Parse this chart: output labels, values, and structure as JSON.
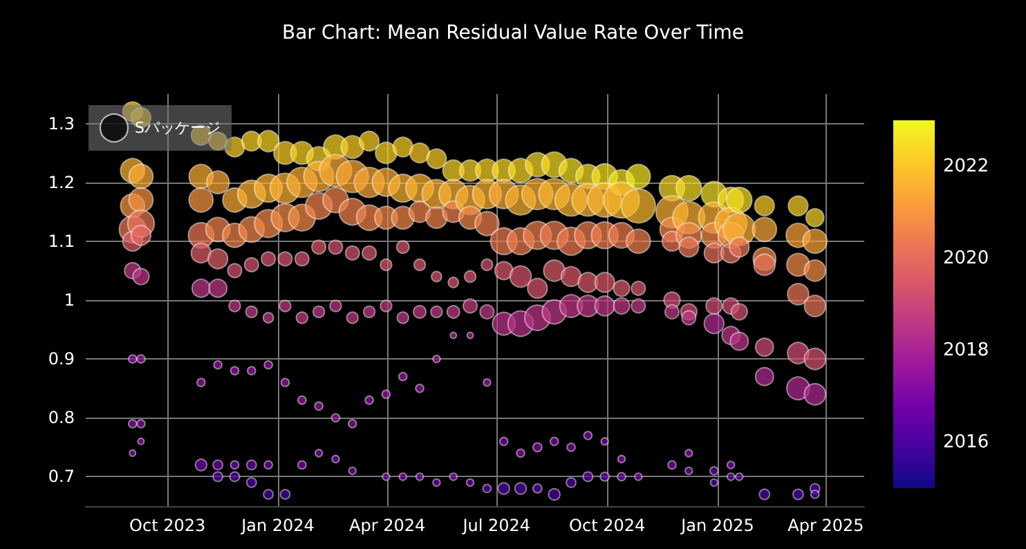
{
  "chart_data": {
    "type": "bubble",
    "title": "Bar Chart: Mean Residual Value Rate Over Time",
    "legend": "top left",
    "grid": true,
    "marker": "circle",
    "xlim": [
      "2023-07-25",
      "2025-05-03"
    ],
    "xticks": [
      {
        "value": "2023-10-01",
        "label": "Oct 2023"
      },
      {
        "value": "2024-01-01",
        "label": "Jan 2024"
      },
      {
        "value": "2024-04-01",
        "label": "Apr 2024"
      },
      {
        "value": "2024-07-01",
        "label": "Jul 2024"
      },
      {
        "value": "2024-10-01",
        "label": "Oct 2024"
      },
      {
        "value": "2025-01-01",
        "label": "Jan 2025"
      },
      {
        "value": "2025-04-01",
        "label": "Apr 2025"
      }
    ],
    "ylim": [
      0.65,
      1.35
    ],
    "yticks": [
      0.7,
      0.8,
      0.9,
      1,
      1.1,
      1.2,
      1.3
    ],
    "clim": [
      2015,
      2023
    ],
    "cticks": [
      2016,
      2018,
      2020,
      2022
    ],
    "series": [
      {
        "name": "Sパッケージ",
        "x": [
          "2023-09-02",
          "2023-09-02",
          "2023-09-02",
          "2023-09-02",
          "2023-09-02",
          "2023-09-02",
          "2023-09-02",
          "2023-09-02",
          "2023-09-02",
          "2023-09-09",
          "2023-09-09",
          "2023-09-09",
          "2023-09-09",
          "2023-09-09",
          "2023-09-09",
          "2023-09-09",
          "2023-09-09",
          "2023-09-09",
          "2023-10-29",
          "2023-10-29",
          "2023-10-29",
          "2023-10-29",
          "2023-10-29",
          "2023-10-29",
          "2023-10-29",
          "2023-10-29",
          "2023-11-12",
          "2023-11-12",
          "2023-11-12",
          "2023-11-12",
          "2023-11-12",
          "2023-11-12",
          "2023-11-12",
          "2023-11-12",
          "2023-11-26",
          "2023-11-26",
          "2023-11-26",
          "2023-11-26",
          "2023-11-26",
          "2023-11-26",
          "2023-11-26",
          "2023-11-26",
          "2023-12-10",
          "2023-12-10",
          "2023-12-10",
          "2023-12-10",
          "2023-12-10",
          "2023-12-10",
          "2023-12-10",
          "2023-12-10",
          "2023-12-24",
          "2023-12-24",
          "2023-12-24",
          "2023-12-24",
          "2023-12-24",
          "2023-12-24",
          "2023-12-24",
          "2023-12-24",
          "2024-01-07",
          "2024-01-07",
          "2024-01-07",
          "2024-01-07",
          "2024-01-07",
          "2024-01-07",
          "2024-01-07",
          "2024-01-21",
          "2024-01-21",
          "2024-01-21",
          "2024-01-21",
          "2024-01-21",
          "2024-01-21",
          "2024-01-21",
          "2024-02-04",
          "2024-02-04",
          "2024-02-04",
          "2024-02-04",
          "2024-02-04",
          "2024-02-04",
          "2024-02-04",
          "2024-02-18",
          "2024-02-18",
          "2024-02-18",
          "2024-02-18",
          "2024-02-18",
          "2024-02-18",
          "2024-02-18",
          "2024-03-03",
          "2024-03-03",
          "2024-03-03",
          "2024-03-03",
          "2024-03-03",
          "2024-03-03",
          "2024-03-03",
          "2024-03-17",
          "2024-03-17",
          "2024-03-17",
          "2024-03-17",
          "2024-03-17",
          "2024-03-17",
          "2024-03-31",
          "2024-03-31",
          "2024-03-31",
          "2024-03-31",
          "2024-03-31",
          "2024-03-31",
          "2024-03-31",
          "2024-04-14",
          "2024-04-14",
          "2024-04-14",
          "2024-04-14",
          "2024-04-14",
          "2024-04-14",
          "2024-04-14",
          "2024-04-28",
          "2024-04-28",
          "2024-04-28",
          "2024-04-28",
          "2024-04-28",
          "2024-04-28",
          "2024-04-28",
          "2024-05-12",
          "2024-05-12",
          "2024-05-12",
          "2024-05-12",
          "2024-05-12",
          "2024-05-12",
          "2024-05-12",
          "2024-05-26",
          "2024-05-26",
          "2024-05-26",
          "2024-05-26",
          "2024-05-26",
          "2024-05-26",
          "2024-05-26",
          "2024-06-09",
          "2024-06-09",
          "2024-06-09",
          "2024-06-09",
          "2024-06-09",
          "2024-06-09",
          "2024-06-09",
          "2024-06-23",
          "2024-06-23",
          "2024-06-23",
          "2024-06-23",
          "2024-06-23",
          "2024-06-23",
          "2024-06-23",
          "2024-07-07",
          "2024-07-07",
          "2024-07-07",
          "2024-07-07",
          "2024-07-07",
          "2024-07-07",
          "2024-07-07",
          "2024-07-21",
          "2024-07-21",
          "2024-07-21",
          "2024-07-21",
          "2024-07-21",
          "2024-07-21",
          "2024-07-21",
          "2024-08-04",
          "2024-08-04",
          "2024-08-04",
          "2024-08-04",
          "2024-08-04",
          "2024-08-04",
          "2024-08-04",
          "2024-08-18",
          "2024-08-18",
          "2024-08-18",
          "2024-08-18",
          "2024-08-18",
          "2024-08-18",
          "2024-08-18",
          "2024-09-01",
          "2024-09-01",
          "2024-09-01",
          "2024-09-01",
          "2024-09-01",
          "2024-09-01",
          "2024-09-01",
          "2024-09-15",
          "2024-09-15",
          "2024-09-15",
          "2024-09-15",
          "2024-09-15",
          "2024-09-15",
          "2024-09-15",
          "2024-09-29",
          "2024-09-29",
          "2024-09-29",
          "2024-09-29",
          "2024-09-29",
          "2024-09-29",
          "2024-09-29",
          "2024-10-13",
          "2024-10-13",
          "2024-10-13",
          "2024-10-13",
          "2024-10-13",
          "2024-10-13",
          "2024-10-13",
          "2024-10-27",
          "2024-10-27",
          "2024-10-27",
          "2024-10-27",
          "2024-10-27",
          "2024-10-27",
          "2024-11-24",
          "2024-11-24",
          "2024-11-24",
          "2024-11-24",
          "2024-11-24",
          "2024-11-24",
          "2024-11-24",
          "2024-12-08",
          "2024-12-08",
          "2024-12-08",
          "2024-12-08",
          "2024-12-08",
          "2024-12-08",
          "2024-12-08",
          "2024-12-08",
          "2024-12-29",
          "2024-12-29",
          "2024-12-29",
          "2024-12-29",
          "2024-12-29",
          "2024-12-29",
          "2024-12-29",
          "2024-12-29",
          "2025-01-12",
          "2025-01-12",
          "2025-01-12",
          "2025-01-12",
          "2025-01-12",
          "2025-01-12",
          "2025-01-12",
          "2025-01-12",
          "2025-01-19",
          "2025-01-19",
          "2025-01-19",
          "2025-01-19",
          "2025-01-19",
          "2025-01-19",
          "2025-02-09",
          "2025-02-09",
          "2025-02-09",
          "2025-02-09",
          "2025-02-09",
          "2025-02-09",
          "2025-02-09",
          "2025-03-09",
          "2025-03-09",
          "2025-03-09",
          "2025-03-09",
          "2025-03-09",
          "2025-03-09",
          "2025-03-09",
          "2025-03-23",
          "2025-03-23",
          "2025-03-23",
          "2025-03-23",
          "2025-03-23",
          "2025-03-23",
          "2025-03-23",
          "2025-03-23"
        ],
        "values": [
          1.32,
          1.22,
          1.16,
          1.12,
          1.1,
          1.05,
          0.9,
          0.79,
          0.74,
          1.31,
          1.21,
          1.17,
          1.13,
          1.11,
          1.04,
          0.9,
          0.79,
          0.76,
          1.28,
          1.21,
          1.17,
          1.11,
          1.08,
          1.02,
          0.86,
          0.72,
          1.27,
          1.2,
          1.12,
          1.07,
          1.02,
          0.89,
          0.72,
          0.7,
          1.26,
          1.17,
          1.11,
          1.05,
          0.99,
          0.88,
          0.72,
          0.7,
          1.27,
          1.18,
          1.12,
          1.06,
          0.98,
          0.88,
          0.72,
          0.69,
          1.27,
          1.19,
          1.13,
          1.07,
          0.97,
          0.89,
          0.72,
          0.67,
          1.25,
          1.19,
          1.14,
          1.07,
          0.99,
          0.86,
          0.67,
          1.25,
          1.2,
          1.14,
          1.07,
          0.97,
          0.83,
          0.72,
          1.24,
          1.21,
          1.16,
          1.09,
          0.98,
          0.82,
          0.74,
          1.26,
          1.22,
          1.17,
          1.09,
          0.99,
          0.8,
          0.73,
          1.26,
          1.21,
          1.15,
          1.08,
          0.97,
          0.79,
          0.71,
          1.27,
          1.2,
          1.14,
          1.08,
          0.98,
          0.83,
          1.25,
          1.2,
          1.14,
          1.06,
          0.99,
          0.84,
          0.7,
          1.26,
          1.19,
          1.14,
          1.09,
          0.97,
          0.87,
          0.7,
          1.25,
          1.19,
          1.15,
          1.06,
          0.98,
          0.85,
          0.7,
          1.24,
          1.18,
          1.14,
          1.04,
          0.98,
          0.9,
          0.69,
          1.22,
          1.18,
          1.15,
          1.03,
          0.98,
          0.94,
          0.7,
          1.22,
          1.17,
          1.14,
          1.04,
          0.99,
          0.94,
          0.69,
          1.22,
          1.18,
          1.13,
          1.06,
          0.98,
          0.86,
          0.68,
          1.22,
          1.18,
          1.1,
          1.05,
          0.96,
          0.76,
          0.68,
          1.22,
          1.17,
          1.1,
          1.04,
          0.96,
          0.74,
          0.68,
          1.23,
          1.18,
          1.11,
          1.02,
          0.97,
          0.75,
          0.68,
          1.23,
          1.18,
          1.11,
          1.05,
          0.98,
          0.76,
          0.67,
          1.22,
          1.17,
          1.1,
          1.04,
          0.99,
          0.75,
          0.69,
          1.21,
          1.17,
          1.11,
          1.03,
          0.99,
          0.77,
          0.7,
          1.21,
          1.17,
          1.11,
          1.03,
          0.99,
          0.76,
          0.7,
          1.2,
          1.17,
          1.11,
          1.02,
          0.99,
          0.73,
          0.7,
          1.21,
          1.16,
          1.1,
          1.02,
          0.99,
          0.7,
          1.19,
          1.15,
          1.12,
          1.1,
          1.0,
          0.98,
          0.72,
          1.19,
          1.14,
          1.11,
          1.09,
          0.98,
          0.97,
          0.74,
          0.71,
          1.18,
          1.14,
          1.11,
          1.08,
          0.99,
          0.96,
          0.71,
          0.69,
          1.17,
          1.13,
          1.11,
          1.08,
          0.99,
          0.94,
          0.72,
          0.7,
          1.17,
          1.12,
          1.09,
          0.98,
          0.93,
          0.7,
          1.16,
          1.12,
          1.07,
          1.06,
          0.92,
          0.87,
          0.67,
          1.16,
          1.11,
          1.06,
          1.01,
          0.91,
          0.85,
          0.67,
          1.14,
          1.1,
          1.05,
          0.99,
          0.9,
          0.84,
          0.68,
          0.67
        ],
        "sizes": [
          0.3,
          0.45,
          0.45,
          0.55,
          0.3,
          0.2,
          0.05,
          0.05,
          0.03,
          0.3,
          0.45,
          0.45,
          0.55,
          0.3,
          0.2,
          0.05,
          0.05,
          0.03,
          0.3,
          0.45,
          0.45,
          0.5,
          0.3,
          0.25,
          0.05,
          0.1,
          0.25,
          0.4,
          0.45,
          0.3,
          0.25,
          0.05,
          0.07,
          0.07,
          0.3,
          0.45,
          0.45,
          0.15,
          0.1,
          0.05,
          0.05,
          0.07,
          0.3,
          0.6,
          0.5,
          0.15,
          0.1,
          0.05,
          0.07,
          0.07,
          0.35,
          0.6,
          0.6,
          0.15,
          0.08,
          0.05,
          0.05,
          0.07,
          0.4,
          0.7,
          0.6,
          0.15,
          0.1,
          0.05,
          0.07,
          0.4,
          0.7,
          0.55,
          0.15,
          0.1,
          0.05,
          0.05,
          0.45,
          0.7,
          0.55,
          0.15,
          0.1,
          0.05,
          0.04,
          0.45,
          0.8,
          0.5,
          0.15,
          0.1,
          0.05,
          0.04,
          0.4,
          0.8,
          0.55,
          0.15,
          0.1,
          0.05,
          0.04,
          0.3,
          0.7,
          0.5,
          0.15,
          0.1,
          0.05,
          0.35,
          0.6,
          0.4,
          0.1,
          0.1,
          0.05,
          0.04,
          0.3,
          0.6,
          0.4,
          0.12,
          0.1,
          0.05,
          0.04,
          0.3,
          0.6,
          0.35,
          0.1,
          0.12,
          0.05,
          0.04,
          0.3,
          0.65,
          0.35,
          0.08,
          0.1,
          0.04,
          0.04,
          0.35,
          0.65,
          0.35,
          0.08,
          0.12,
          0.03,
          0.04,
          0.35,
          0.65,
          0.4,
          0.1,
          0.15,
          0.03,
          0.04,
          0.4,
          0.65,
          0.45,
          0.1,
          0.15,
          0.04,
          0.05,
          0.4,
          0.65,
          0.55,
          0.25,
          0.4,
          0.05,
          0.1,
          0.45,
          0.7,
          0.55,
          0.35,
          0.5,
          0.05,
          0.1,
          0.45,
          0.75,
          0.6,
          0.3,
          0.5,
          0.06,
          0.06,
          0.5,
          0.75,
          0.6,
          0.35,
          0.45,
          0.05,
          0.1,
          0.45,
          0.8,
          0.6,
          0.3,
          0.4,
          0.05,
          0.07,
          0.45,
          0.8,
          0.55,
          0.3,
          0.35,
          0.05,
          0.07,
          0.5,
          0.9,
          0.55,
          0.3,
          0.3,
          0.04,
          0.06,
          0.5,
          1,
          0.5,
          0.2,
          0.2,
          0.04,
          0.05,
          0.45,
          0.9,
          0.45,
          0.15,
          0.15,
          0.04,
          0.5,
          0.8,
          0.45,
          0.3,
          0.2,
          0.15,
          0.05,
          0.5,
          0.8,
          0.5,
          0.3,
          0.2,
          0.15,
          0.04,
          0.04,
          0.5,
          0.75,
          0.5,
          0.3,
          0.2,
          0.3,
          0.05,
          0.04,
          0.5,
          0.8,
          0.5,
          0.3,
          0.2,
          0.25,
          0.04,
          0.04,
          0.5,
          0.8,
          0.3,
          0.2,
          0.25,
          0.04,
          0.3,
          0.45,
          0.4,
          0.35,
          0.25,
          0.25,
          0.08,
          0.3,
          0.45,
          0.4,
          0.35,
          0.35,
          0.4,
          0.08,
          0.25,
          0.45,
          0.35,
          0.35,
          0.35,
          0.35,
          0.07,
          0.05
        ],
        "cvalues": [
          2022.3,
          2021.6,
          2021,
          2020.3,
          2019.6,
          2018.6,
          2017.5,
          2017.2,
          2017,
          2022.2,
          2021.5,
          2020.9,
          2020.2,
          2019.8,
          2018.5,
          2017.5,
          2017.2,
          2017.3,
          2022,
          2021.5,
          2021,
          2020.3,
          2019.6,
          2018.5,
          2017.5,
          2016.8,
          2022.1,
          2021.4,
          2020.6,
          2019.7,
          2018.6,
          2017.5,
          2016.8,
          2016.3,
          2022.2,
          2021.5,
          2020.6,
          2019.3,
          2018.6,
          2017.5,
          2016.7,
          2016.1,
          2022.3,
          2021.6,
          2020.7,
          2019.3,
          2018.6,
          2017.5,
          2016.5,
          2016,
          2022.3,
          2021.6,
          2020.7,
          2019.3,
          2018.6,
          2017.4,
          2016.7,
          2015.8,
          2022.2,
          2021.6,
          2020.8,
          2019.4,
          2018.6,
          2017.6,
          2015.8,
          2022.3,
          2021.5,
          2020.8,
          2019.4,
          2018.6,
          2017.5,
          2016.8,
          2022.3,
          2021.5,
          2020.6,
          2019.5,
          2018.6,
          2017.5,
          2017,
          2022.3,
          2021.5,
          2020.6,
          2019.3,
          2018.5,
          2017.5,
          2017,
          2022.2,
          2021.4,
          2020.6,
          2019.4,
          2018.6,
          2017.4,
          2016.8,
          2022.2,
          2021.4,
          2020.6,
          2019.4,
          2018.6,
          2017.4,
          2022.3,
          2021.5,
          2020.7,
          2019.5,
          2018.6,
          2017.5,
          2016.8,
          2022.2,
          2021.6,
          2020.7,
          2019.4,
          2018.6,
          2017.5,
          2016.8,
          2022.1,
          2021.6,
          2020.6,
          2019.5,
          2018.6,
          2017.5,
          2016.8,
          2022.2,
          2021.6,
          2020.6,
          2019.4,
          2018.6,
          2017.5,
          2016.6,
          2022.3,
          2021.6,
          2020.6,
          2019.4,
          2018.6,
          2018,
          2016.8,
          2022.3,
          2021.6,
          2020.7,
          2019.4,
          2018.7,
          2017.9,
          2016.5,
          2022.3,
          2021.6,
          2020.5,
          2019.3,
          2018.6,
          2017.6,
          2016.3,
          2022.4,
          2021.5,
          2020.4,
          2019.5,
          2018.5,
          2016.9,
          2016,
          2022.4,
          2021.6,
          2020.4,
          2019.4,
          2018.4,
          2017.2,
          2016,
          2022.4,
          2021.6,
          2020.5,
          2019.4,
          2018.5,
          2017,
          2016.3,
          2022.5,
          2021.7,
          2020.4,
          2019.6,
          2018.6,
          2017,
          2016,
          2022.5,
          2021.7,
          2020.4,
          2019.5,
          2018.6,
          2016.9,
          2016.2,
          2022.5,
          2021.7,
          2020.4,
          2019.5,
          2018.6,
          2017,
          2016.5,
          2022.6,
          2021.7,
          2020.5,
          2019.5,
          2018.6,
          2017,
          2016.5,
          2022.6,
          2021.8,
          2020.4,
          2019.5,
          2018.6,
          2017.2,
          2016.8,
          2022.7,
          2021.8,
          2020.5,
          2019.5,
          2018.7,
          2016.7,
          2022.4,
          2021.6,
          2020.7,
          2020.2,
          2019.2,
          2018.6,
          2016.8,
          2022.5,
          2021.6,
          2020.7,
          2020.2,
          2019.1,
          2018.6,
          2017.2,
          2016.8,
          2022.5,
          2021.6,
          2020.8,
          2020.1,
          2019.2,
          2018.2,
          2016.5,
          2016.2,
          2022.4,
          2021.6,
          2020.8,
          2020.1,
          2019.1,
          2018.5,
          2016.9,
          2016.2,
          2022.5,
          2021.6,
          2020.2,
          2019.3,
          2018.5,
          2016.4,
          2022.2,
          2021.4,
          2020.8,
          2020.1,
          2019.1,
          2018.2,
          2016,
          2022.2,
          2021.3,
          2020.8,
          2020.2,
          2019.2,
          2018.2,
          2016,
          2022.3,
          2021.3,
          2020.8,
          2020.2,
          2019.3,
          2018.2,
          2016.3,
          2016
        ]
      }
    ]
  }
}
